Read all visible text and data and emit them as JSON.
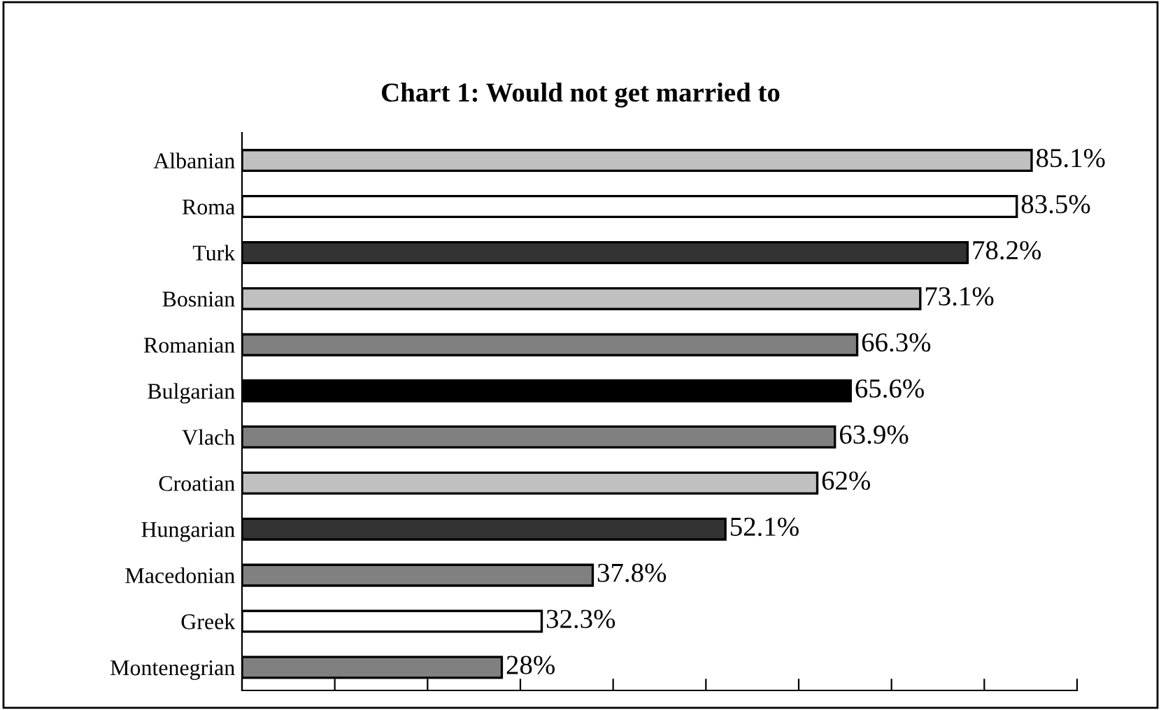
{
  "chart_data": {
    "type": "bar",
    "orientation": "horizontal",
    "title": "Chart 1: Would not get married to",
    "categories": [
      "Albanian",
      "Roma",
      "Turk",
      "Bosnian",
      "Romanian",
      "Bulgarian",
      "Vlach",
      "Croatian",
      "Hungarian",
      "Macedonian",
      "Greek",
      "Montenegrian"
    ],
    "values": [
      85.1,
      83.5,
      78.2,
      73.1,
      66.3,
      65.6,
      63.9,
      62,
      52.1,
      37.8,
      32.3,
      28
    ],
    "value_labels": [
      "85.1%",
      "83.5%",
      "78.2%",
      "73.1%",
      "66.3%",
      "65.6%",
      "63.9%",
      "62%",
      "52.1%",
      "37.8%",
      "32.3%",
      "28%"
    ],
    "colors": [
      "#c0c0c0",
      "#ffffff",
      "#333333",
      "#c0c0c0",
      "#808080",
      "#000000",
      "#808080",
      "#c0c0c0",
      "#333333",
      "#808080",
      "#ffffff",
      "#808080"
    ],
    "xlim": [
      0,
      90
    ],
    "xticks": [
      {
        "value": 0,
        "label": null
      },
      {
        "value": 10,
        "label": null
      },
      {
        "value": 20,
        "label": null
      },
      {
        "value": 30,
        "label": null
      },
      {
        "value": 40,
        "label": null
      },
      {
        "value": 50,
        "label": null
      },
      {
        "value": 60,
        "label": null
      },
      {
        "value": 70,
        "label": null
      },
      {
        "value": 80,
        "label": null
      },
      {
        "value": 90,
        "label": null
      }
    ],
    "tick_labels": "y",
    "grid": false,
    "legend": false
  }
}
